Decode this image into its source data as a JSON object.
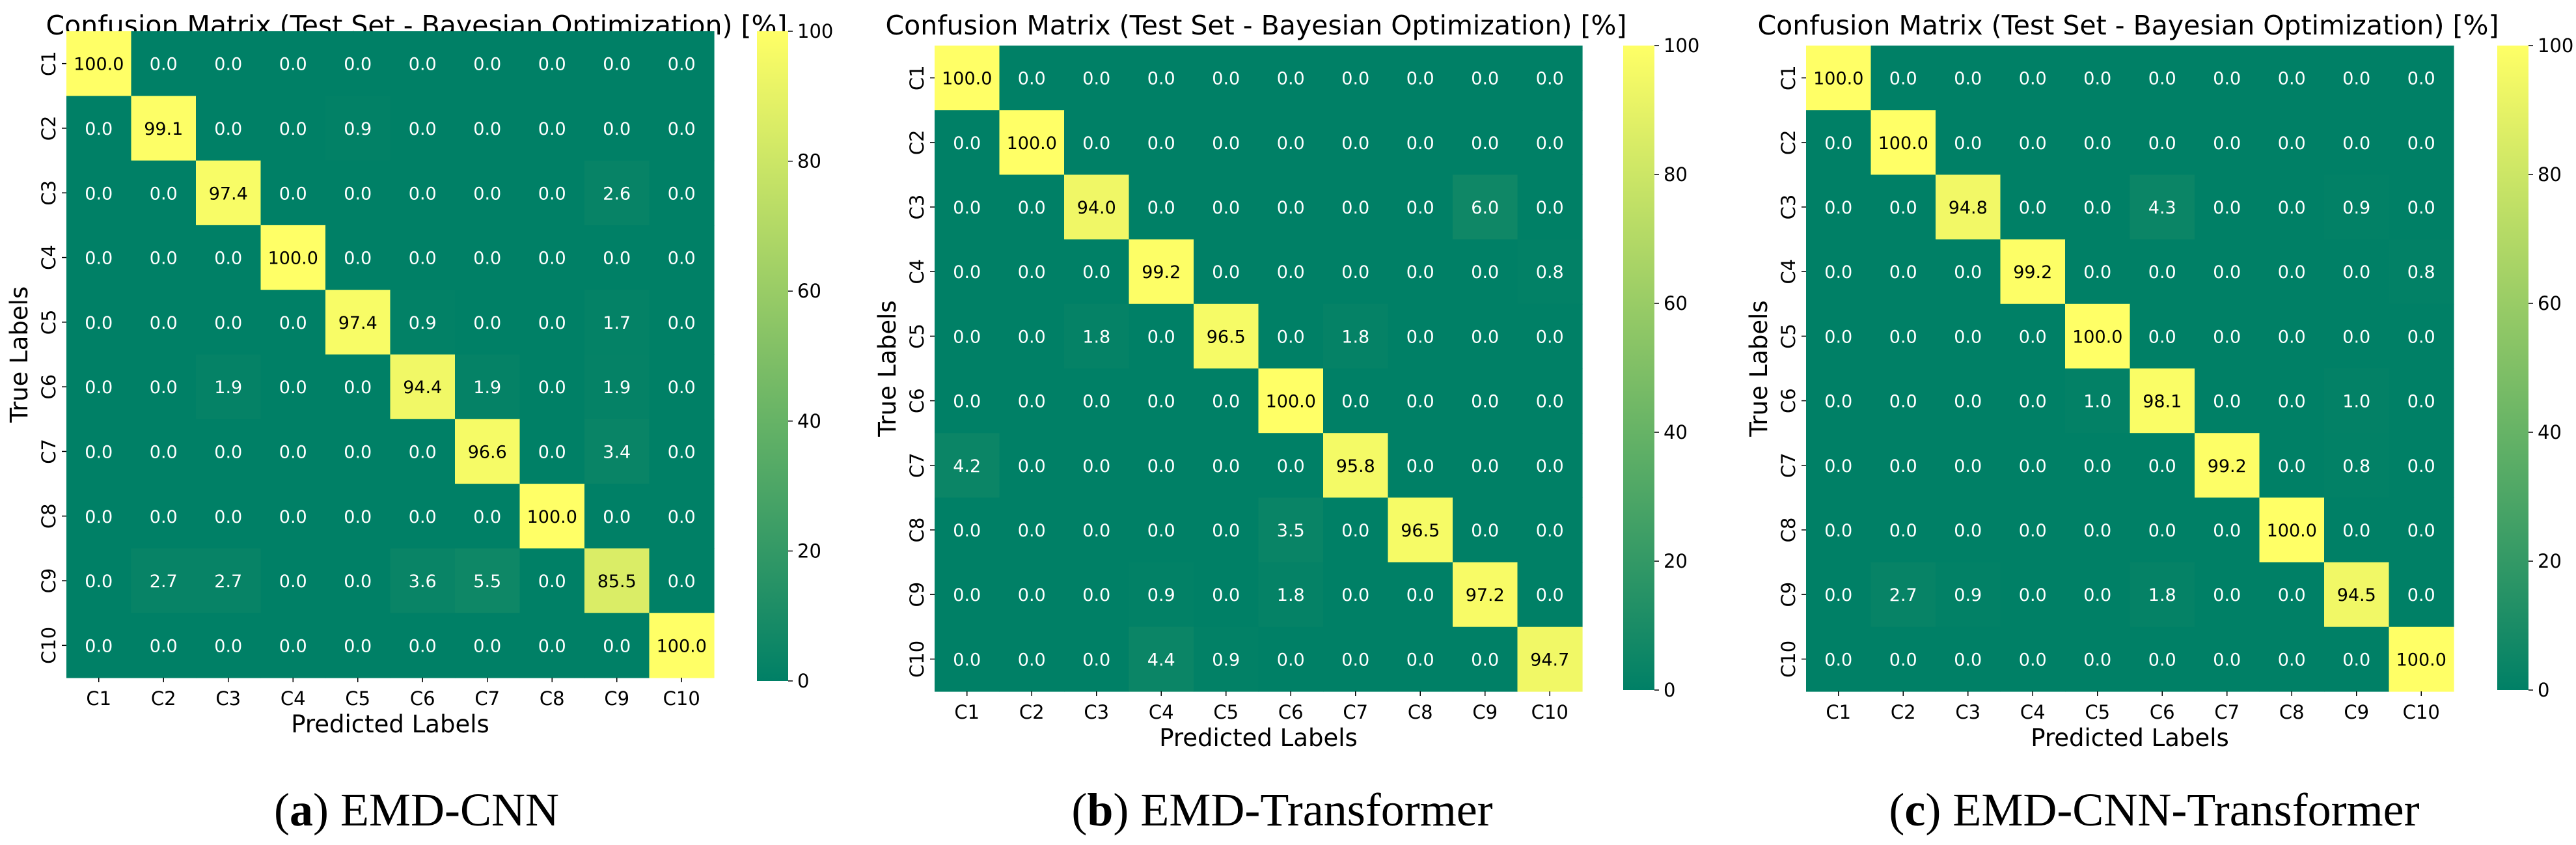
{
  "chart_data": [
    {
      "type": "heatmap",
      "title": "Confusion Matrix (Test Set - Bayesian Optimization) [%]",
      "xlabel": "Predicted Labels",
      "ylabel": "True Labels",
      "x_categories": [
        "C1",
        "C2",
        "C3",
        "C4",
        "C5",
        "C6",
        "C7",
        "C8",
        "C9",
        "C10"
      ],
      "y_categories": [
        "C1",
        "C2",
        "C3",
        "C4",
        "C5",
        "C6",
        "C7",
        "C8",
        "C9",
        "C10"
      ],
      "colorbar": {
        "min": 0,
        "max": 100,
        "ticks": [
          0,
          20,
          40,
          60,
          80,
          100
        ],
        "colormap": "summer"
      },
      "values": [
        [
          100.0,
          0.0,
          0.0,
          0.0,
          0.0,
          0.0,
          0.0,
          0.0,
          0.0,
          0.0
        ],
        [
          0.0,
          99.1,
          0.0,
          0.0,
          0.9,
          0.0,
          0.0,
          0.0,
          0.0,
          0.0
        ],
        [
          0.0,
          0.0,
          97.4,
          0.0,
          0.0,
          0.0,
          0.0,
          0.0,
          2.6,
          0.0
        ],
        [
          0.0,
          0.0,
          0.0,
          100.0,
          0.0,
          0.0,
          0.0,
          0.0,
          0.0,
          0.0
        ],
        [
          0.0,
          0.0,
          0.0,
          0.0,
          97.4,
          0.9,
          0.0,
          0.0,
          1.7,
          0.0
        ],
        [
          0.0,
          0.0,
          1.9,
          0.0,
          0.0,
          94.4,
          1.9,
          0.0,
          1.9,
          0.0
        ],
        [
          0.0,
          0.0,
          0.0,
          0.0,
          0.0,
          0.0,
          96.6,
          0.0,
          3.4,
          0.0
        ],
        [
          0.0,
          0.0,
          0.0,
          0.0,
          0.0,
          0.0,
          0.0,
          100.0,
          0.0,
          0.0
        ],
        [
          0.0,
          2.7,
          2.7,
          0.0,
          0.0,
          3.6,
          5.5,
          0.0,
          85.5,
          0.0
        ],
        [
          0.0,
          0.0,
          0.0,
          0.0,
          0.0,
          0.0,
          0.0,
          0.0,
          0.0,
          100.0
        ]
      ],
      "caption_letter": "(a)",
      "caption_text": "EMD-CNN"
    },
    {
      "type": "heatmap",
      "title": "Confusion Matrix (Test Set - Bayesian Optimization) [%]",
      "xlabel": "Predicted Labels",
      "ylabel": "True Labels",
      "x_categories": [
        "C1",
        "C2",
        "C3",
        "C4",
        "C5",
        "C6",
        "C7",
        "C8",
        "C9",
        "C10"
      ],
      "y_categories": [
        "C1",
        "C2",
        "C3",
        "C4",
        "C5",
        "C6",
        "C7",
        "C8",
        "C9",
        "C10"
      ],
      "colorbar": {
        "min": 0,
        "max": 100,
        "ticks": [
          0,
          20,
          40,
          60,
          80,
          100
        ],
        "colormap": "summer"
      },
      "values": [
        [
          100.0,
          0.0,
          0.0,
          0.0,
          0.0,
          0.0,
          0.0,
          0.0,
          0.0,
          0.0
        ],
        [
          0.0,
          100.0,
          0.0,
          0.0,
          0.0,
          0.0,
          0.0,
          0.0,
          0.0,
          0.0
        ],
        [
          0.0,
          0.0,
          94.0,
          0.0,
          0.0,
          0.0,
          0.0,
          0.0,
          6.0,
          0.0
        ],
        [
          0.0,
          0.0,
          0.0,
          99.2,
          0.0,
          0.0,
          0.0,
          0.0,
          0.0,
          0.8
        ],
        [
          0.0,
          0.0,
          1.8,
          0.0,
          96.5,
          0.0,
          1.8,
          0.0,
          0.0,
          0.0
        ],
        [
          0.0,
          0.0,
          0.0,
          0.0,
          0.0,
          100.0,
          0.0,
          0.0,
          0.0,
          0.0
        ],
        [
          4.2,
          0.0,
          0.0,
          0.0,
          0.0,
          0.0,
          95.8,
          0.0,
          0.0,
          0.0
        ],
        [
          0.0,
          0.0,
          0.0,
          0.0,
          0.0,
          3.5,
          0.0,
          96.5,
          0.0,
          0.0
        ],
        [
          0.0,
          0.0,
          0.0,
          0.9,
          0.0,
          1.8,
          0.0,
          0.0,
          97.2,
          0.0
        ],
        [
          0.0,
          0.0,
          0.0,
          4.4,
          0.9,
          0.0,
          0.0,
          0.0,
          0.0,
          94.7
        ]
      ],
      "caption_letter": "(b)",
      "caption_text": "EMD-Transformer"
    },
    {
      "type": "heatmap",
      "title": "Confusion Matrix (Test Set - Bayesian Optimization) [%]",
      "xlabel": "Predicted Labels",
      "ylabel": "True Labels",
      "x_categories": [
        "C1",
        "C2",
        "C3",
        "C4",
        "C5",
        "C6",
        "C7",
        "C8",
        "C9",
        "C10"
      ],
      "y_categories": [
        "C1",
        "C2",
        "C3",
        "C4",
        "C5",
        "C6",
        "C7",
        "C8",
        "C9",
        "C10"
      ],
      "colorbar": {
        "min": 0,
        "max": 100,
        "ticks": [
          0,
          20,
          40,
          60,
          80,
          100
        ],
        "colormap": "summer"
      },
      "values": [
        [
          100.0,
          0.0,
          0.0,
          0.0,
          0.0,
          0.0,
          0.0,
          0.0,
          0.0,
          0.0
        ],
        [
          0.0,
          100.0,
          0.0,
          0.0,
          0.0,
          0.0,
          0.0,
          0.0,
          0.0,
          0.0
        ],
        [
          0.0,
          0.0,
          94.8,
          0.0,
          0.0,
          4.3,
          0.0,
          0.0,
          0.9,
          0.0
        ],
        [
          0.0,
          0.0,
          0.0,
          99.2,
          0.0,
          0.0,
          0.0,
          0.0,
          0.0,
          0.8
        ],
        [
          0.0,
          0.0,
          0.0,
          0.0,
          100.0,
          0.0,
          0.0,
          0.0,
          0.0,
          0.0
        ],
        [
          0.0,
          0.0,
          0.0,
          0.0,
          1.0,
          98.1,
          0.0,
          0.0,
          1.0,
          0.0
        ],
        [
          0.0,
          0.0,
          0.0,
          0.0,
          0.0,
          0.0,
          99.2,
          0.0,
          0.8,
          0.0
        ],
        [
          0.0,
          0.0,
          0.0,
          0.0,
          0.0,
          0.0,
          0.0,
          100.0,
          0.0,
          0.0
        ],
        [
          0.0,
          2.7,
          0.9,
          0.0,
          0.0,
          1.8,
          0.0,
          0.0,
          94.5,
          0.0
        ],
        [
          0.0,
          0.0,
          0.0,
          0.0,
          0.0,
          0.0,
          0.0,
          0.0,
          0.0,
          100.0
        ]
      ],
      "caption_letter": "(c)",
      "caption_text": "EMD-CNN-Transformer"
    }
  ]
}
